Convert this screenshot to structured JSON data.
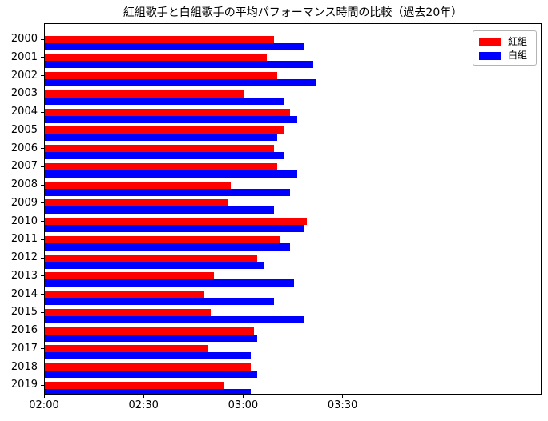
{
  "title": "紅組歌手と白組歌手の平均パフォーマンス時間の比較（過去20年）",
  "legend": [
    {
      "label": "紅組",
      "color": "#ff0000"
    },
    {
      "label": "白組",
      "color": "#0000ff"
    }
  ],
  "colors": {
    "red_team": "#ff0000",
    "white_team": "#0000ff",
    "spine": "#000000",
    "background": "#ffffff",
    "legend_border": "#b3b3b3"
  },
  "chart_data": {
    "type": "bar",
    "orientation": "horizontal",
    "title": "紅組歌手と白組歌手の平均パフォーマンス時間の比較（過去20年）",
    "xlabel": "",
    "ylabel": "",
    "grid": false,
    "legend_position": "upper right",
    "categories": [
      "2000",
      "2001",
      "2002",
      "2003",
      "2004",
      "2005",
      "2006",
      "2007",
      "2008",
      "2009",
      "2010",
      "2011",
      "2012",
      "2013",
      "2014",
      "2015",
      "2016",
      "2017",
      "2018",
      "2019"
    ],
    "x_tick_labels": [
      "02:00",
      "02:30",
      "03:00",
      "03:30"
    ],
    "x_tick_seconds": [
      120,
      150,
      180,
      210
    ],
    "xlim_seconds": [
      120,
      270
    ],
    "series": [
      {
        "name": "紅組",
        "key": "red-team",
        "color": "#ff0000",
        "values_seconds": [
          189,
          187,
          190,
          180,
          194,
          192,
          189,
          190,
          176,
          175,
          199,
          191,
          184,
          171,
          168,
          170,
          183,
          169,
          182,
          174
        ],
        "values_formatted": [
          "03:09",
          "03:07",
          "03:10",
          "03:00",
          "03:14",
          "03:12",
          "03:09",
          "03:10",
          "02:56",
          "02:55",
          "03:19",
          "03:11",
          "03:04",
          "02:51",
          "02:48",
          "02:50",
          "03:03",
          "02:49",
          "03:02",
          "02:54"
        ]
      },
      {
        "name": "白組",
        "key": "white-team",
        "color": "#0000ff",
        "values_seconds": [
          198,
          201,
          202,
          192,
          196,
          190,
          192,
          196,
          194,
          189,
          198,
          194,
          186,
          195,
          189,
          198,
          184,
          182,
          184,
          182
        ],
        "values_formatted": [
          "03:18",
          "03:21",
          "03:22",
          "03:12",
          "03:16",
          "03:10",
          "03:12",
          "03:16",
          "03:14",
          "03:09",
          "03:18",
          "03:14",
          "03:06",
          "03:15",
          "03:09",
          "03:18",
          "03:04",
          "03:02",
          "03:04",
          "03:02"
        ]
      }
    ]
  }
}
